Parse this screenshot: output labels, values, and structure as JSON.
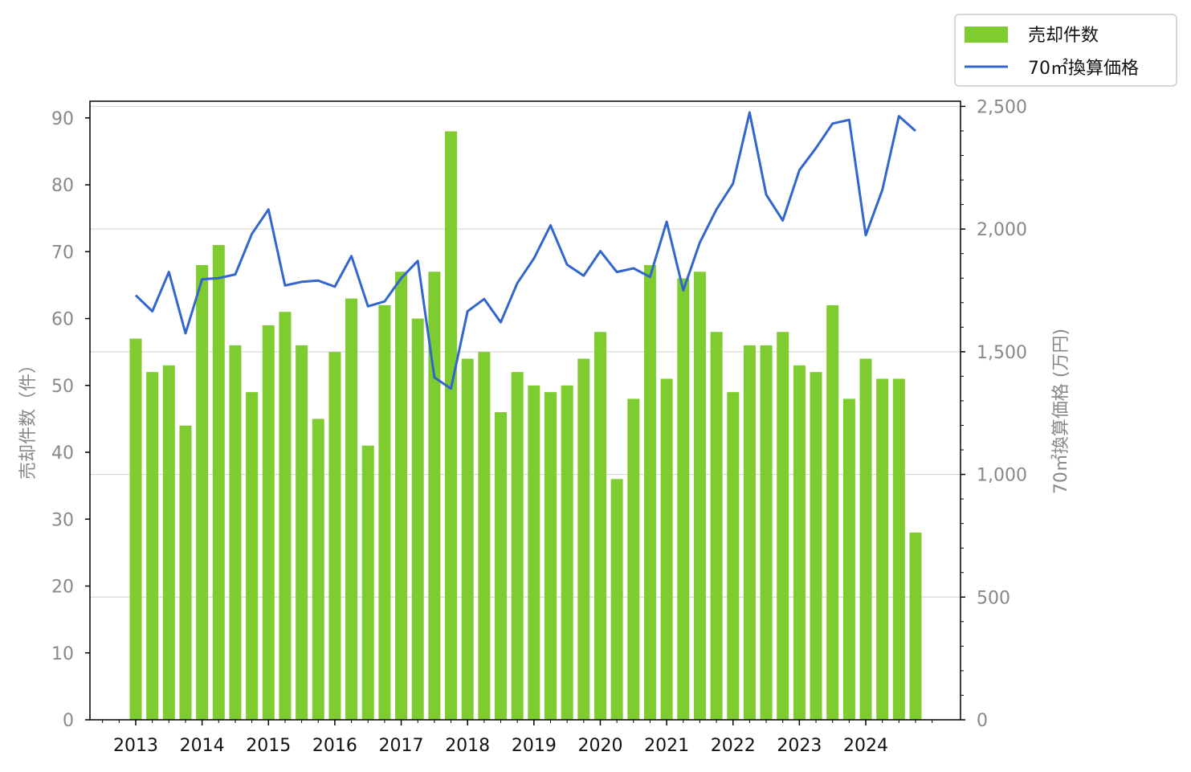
{
  "chart_data": {
    "type": "bar",
    "ylabel_left": "売却件数（件）",
    "ylabel_right": "70㎡換算価格 (万円)",
    "ylim_left": [
      0,
      92.5
    ],
    "ylim_right": [
      0,
      2521
    ],
    "yticks_left": [
      0,
      10,
      20,
      30,
      40,
      50,
      60,
      70,
      80,
      90
    ],
    "yticks_right": [
      0,
      500,
      1000,
      1500,
      2000,
      2500
    ],
    "ytick_labels_right": [
      "0",
      "500",
      "1,000",
      "1,500",
      "2,000",
      "2,500"
    ],
    "xtick_labels": [
      "2013",
      "2014",
      "2015",
      "2016",
      "2017",
      "2018",
      "2019",
      "2020",
      "2021",
      "2022",
      "2023",
      "2024"
    ],
    "grid": "horizontal",
    "legend_position": "top-right outside",
    "series": [
      {
        "name": "売却件数",
        "type": "bar",
        "axis": "left",
        "color": "#7fcc31",
        "values": [
          57,
          52,
          53,
          44,
          68,
          71,
          56,
          49,
          59,
          61,
          56,
          45,
          55,
          63,
          41,
          62,
          67,
          60,
          67,
          88,
          54,
          55,
          46,
          52,
          50,
          49,
          50,
          54,
          58,
          36,
          48,
          68,
          51,
          66,
          67,
          58,
          49,
          56,
          56,
          58,
          53,
          52,
          62,
          48,
          54,
          51,
          51,
          28
        ]
      },
      {
        "name": "70㎡換算価格",
        "type": "line",
        "axis": "right",
        "color": "#3366cc",
        "values": [
          1730,
          1665,
          1825,
          1575,
          1795,
          1800,
          1815,
          1980,
          2080,
          1770,
          1785,
          1790,
          1765,
          1890,
          1685,
          1705,
          1800,
          1870,
          1395,
          1350,
          1665,
          1715,
          1620,
          1780,
          1880,
          2015,
          1855,
          1810,
          1910,
          1825,
          1840,
          1805,
          2030,
          1750,
          1945,
          2080,
          2185,
          2475,
          2140,
          2035,
          2240,
          2330,
          2430,
          2445,
          1975,
          2160,
          2460,
          2400
        ]
      }
    ]
  }
}
